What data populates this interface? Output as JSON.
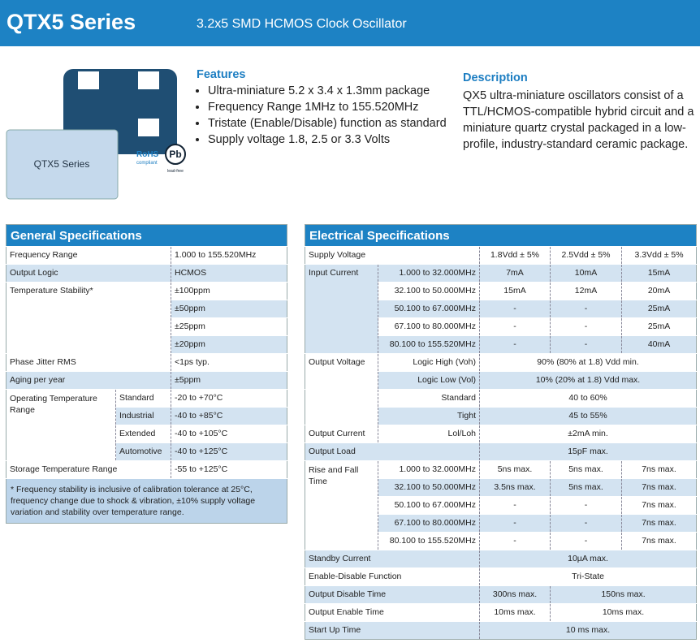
{
  "header": {
    "title": "QTX5 Series",
    "subtitle": "3.2x5 SMD HCMOS Clock Oscillator"
  },
  "product": {
    "label": "QTX5 Series",
    "rohs": "RoHS",
    "rohs_sub": "compliant",
    "pb": "Pb",
    "pb_sub": "lead-free"
  },
  "features": {
    "title": "Features",
    "items": [
      "Ultra-miniature 5.2 x 3.4 x 1.3mm package",
      "Frequency Range 1MHz to 155.520MHz",
      "Tristate (Enable/Disable) function as standard",
      "Supply voltage  1.8, 2.5 or 3.3 Volts"
    ]
  },
  "description": {
    "title": "Description",
    "text": "QX5 ultra-miniature oscillators consist of a TTL/HCMOS-compatible hybrid circuit and a miniature quartz crystal packaged in a low-profile, industry-standard ceramic package."
  },
  "general": {
    "title": "General Specifications",
    "rows": [
      [
        "Frequency Range",
        "1.000 to 155.520MHz"
      ],
      [
        "Output Logic",
        "HCMOS"
      ],
      [
        "Temperature Stability*",
        "±100ppm"
      ],
      [
        "±50ppm"
      ],
      [
        "±25ppm"
      ],
      [
        "±20ppm"
      ],
      [
        "Phase Jitter RMS",
        "<1ps typ."
      ],
      [
        "Aging per year",
        "±5ppm"
      ],
      [
        "Operating Temperature Range",
        "Standard",
        "-20 to +70°C"
      ],
      [
        "Industrial",
        "-40 to +85°C"
      ],
      [
        "Extended",
        "-40 to +105°C"
      ],
      [
        "Automotive",
        "-40 to +125°C"
      ],
      [
        "Storage Temperature Range",
        "-55 to +125°C"
      ]
    ],
    "note": "* Frequency stability is inclusive of calibration tolerance at 25°C, frequency change due to shock & vibration, ±10% supply voltage variation and stability over temperature range."
  },
  "electrical": {
    "title": "Electrical Specifications",
    "rows": [
      [
        "Supply Voltage",
        "1.8Vdd ± 5%",
        "2.5Vdd ± 5%",
        "3.3Vdd ± 5%"
      ],
      [
        "Input Current",
        "1.000 to 32.000MHz",
        "7mA",
        "10mA",
        "15mA"
      ],
      [
        "32.100 to 50.000MHz",
        "15mA",
        "12mA",
        "20mA"
      ],
      [
        "50.100 to 67.000MHz",
        "-",
        "-",
        "25mA"
      ],
      [
        "67.100 to 80.000MHz",
        "-",
        "-",
        "25mA"
      ],
      [
        "80.100 to 155.520MHz",
        "-",
        "-",
        "40mA"
      ],
      [
        "Output Voltage",
        "Logic High (Voh)",
        "90% (80% at 1.8) Vdd min."
      ],
      [
        "Logic Low (Vol)",
        "10% (20% at 1.8) Vdd max."
      ],
      [
        "Standard",
        "40 to 60%"
      ],
      [
        "Tight",
        "45 to 55%"
      ],
      [
        "Output Current",
        "Lol/Loh",
        "±2mA min."
      ],
      [
        "Output Load",
        "15pF max."
      ],
      [
        "Rise and Fall Time",
        "1.000 to 32.000MHz",
        "5ns max.",
        "5ns max.",
        "7ns max."
      ],
      [
        "32.100 to 50.000MHz",
        "3.5ns max.",
        "5ns max.",
        "7ns max."
      ],
      [
        "50.100 to 67.000MHz",
        "-",
        "-",
        "7ns max."
      ],
      [
        "67.100 to 80.000MHz",
        "-",
        "-",
        "7ns max."
      ],
      [
        "80.100 to 155.520MHz",
        "-",
        "-",
        "7ns max."
      ],
      [
        "Standby Current",
        "10µA max."
      ],
      [
        "Enable-Disable Function",
        "Tri-State"
      ],
      [
        "Output Disable Time",
        "300ns max.",
        "150ns max."
      ],
      [
        "Output Enable Time",
        "10ms max.",
        "10ms max."
      ],
      [
        "Start Up Time",
        "10 ms max."
      ]
    ]
  }
}
